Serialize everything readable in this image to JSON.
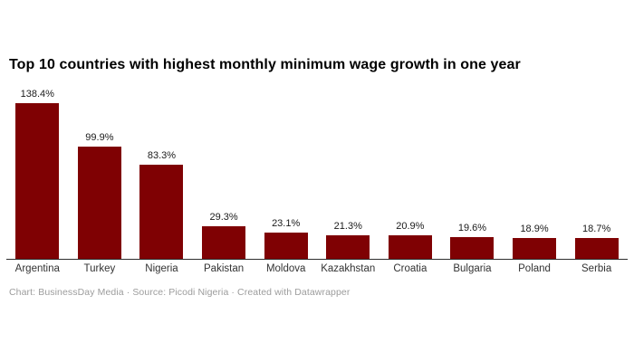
{
  "chart_data": {
    "type": "bar",
    "title": "Top 10 countries with highest monthly minimum wage growth in one year",
    "categories": [
      "Argentina",
      "Turkey",
      "Nigeria",
      "Pakistan",
      "Moldova",
      "Kazakhstan",
      "Croatia",
      "Bulgaria",
      "Poland",
      "Serbia"
    ],
    "values": [
      138.4,
      99.9,
      83.3,
      29.3,
      23.1,
      21.3,
      20.9,
      19.6,
      18.9,
      18.7
    ],
    "value_labels": [
      "138.4%",
      "99.9%",
      "83.3%",
      "29.3%",
      "23.1%",
      "21.3%",
      "20.9%",
      "19.6%",
      "18.9%",
      "18.7%"
    ],
    "value_suffix": "%",
    "xlabel": "",
    "ylabel": "",
    "ylim": [
      0,
      140
    ],
    "grid": false,
    "legend": "none",
    "bar_color": "#7f0103",
    "axis_line_color": "#2e2e2e"
  },
  "footer": {
    "text": "Chart: BusinessDay Media · Source: Picodi Nigeria · Created with Datawrapper"
  }
}
